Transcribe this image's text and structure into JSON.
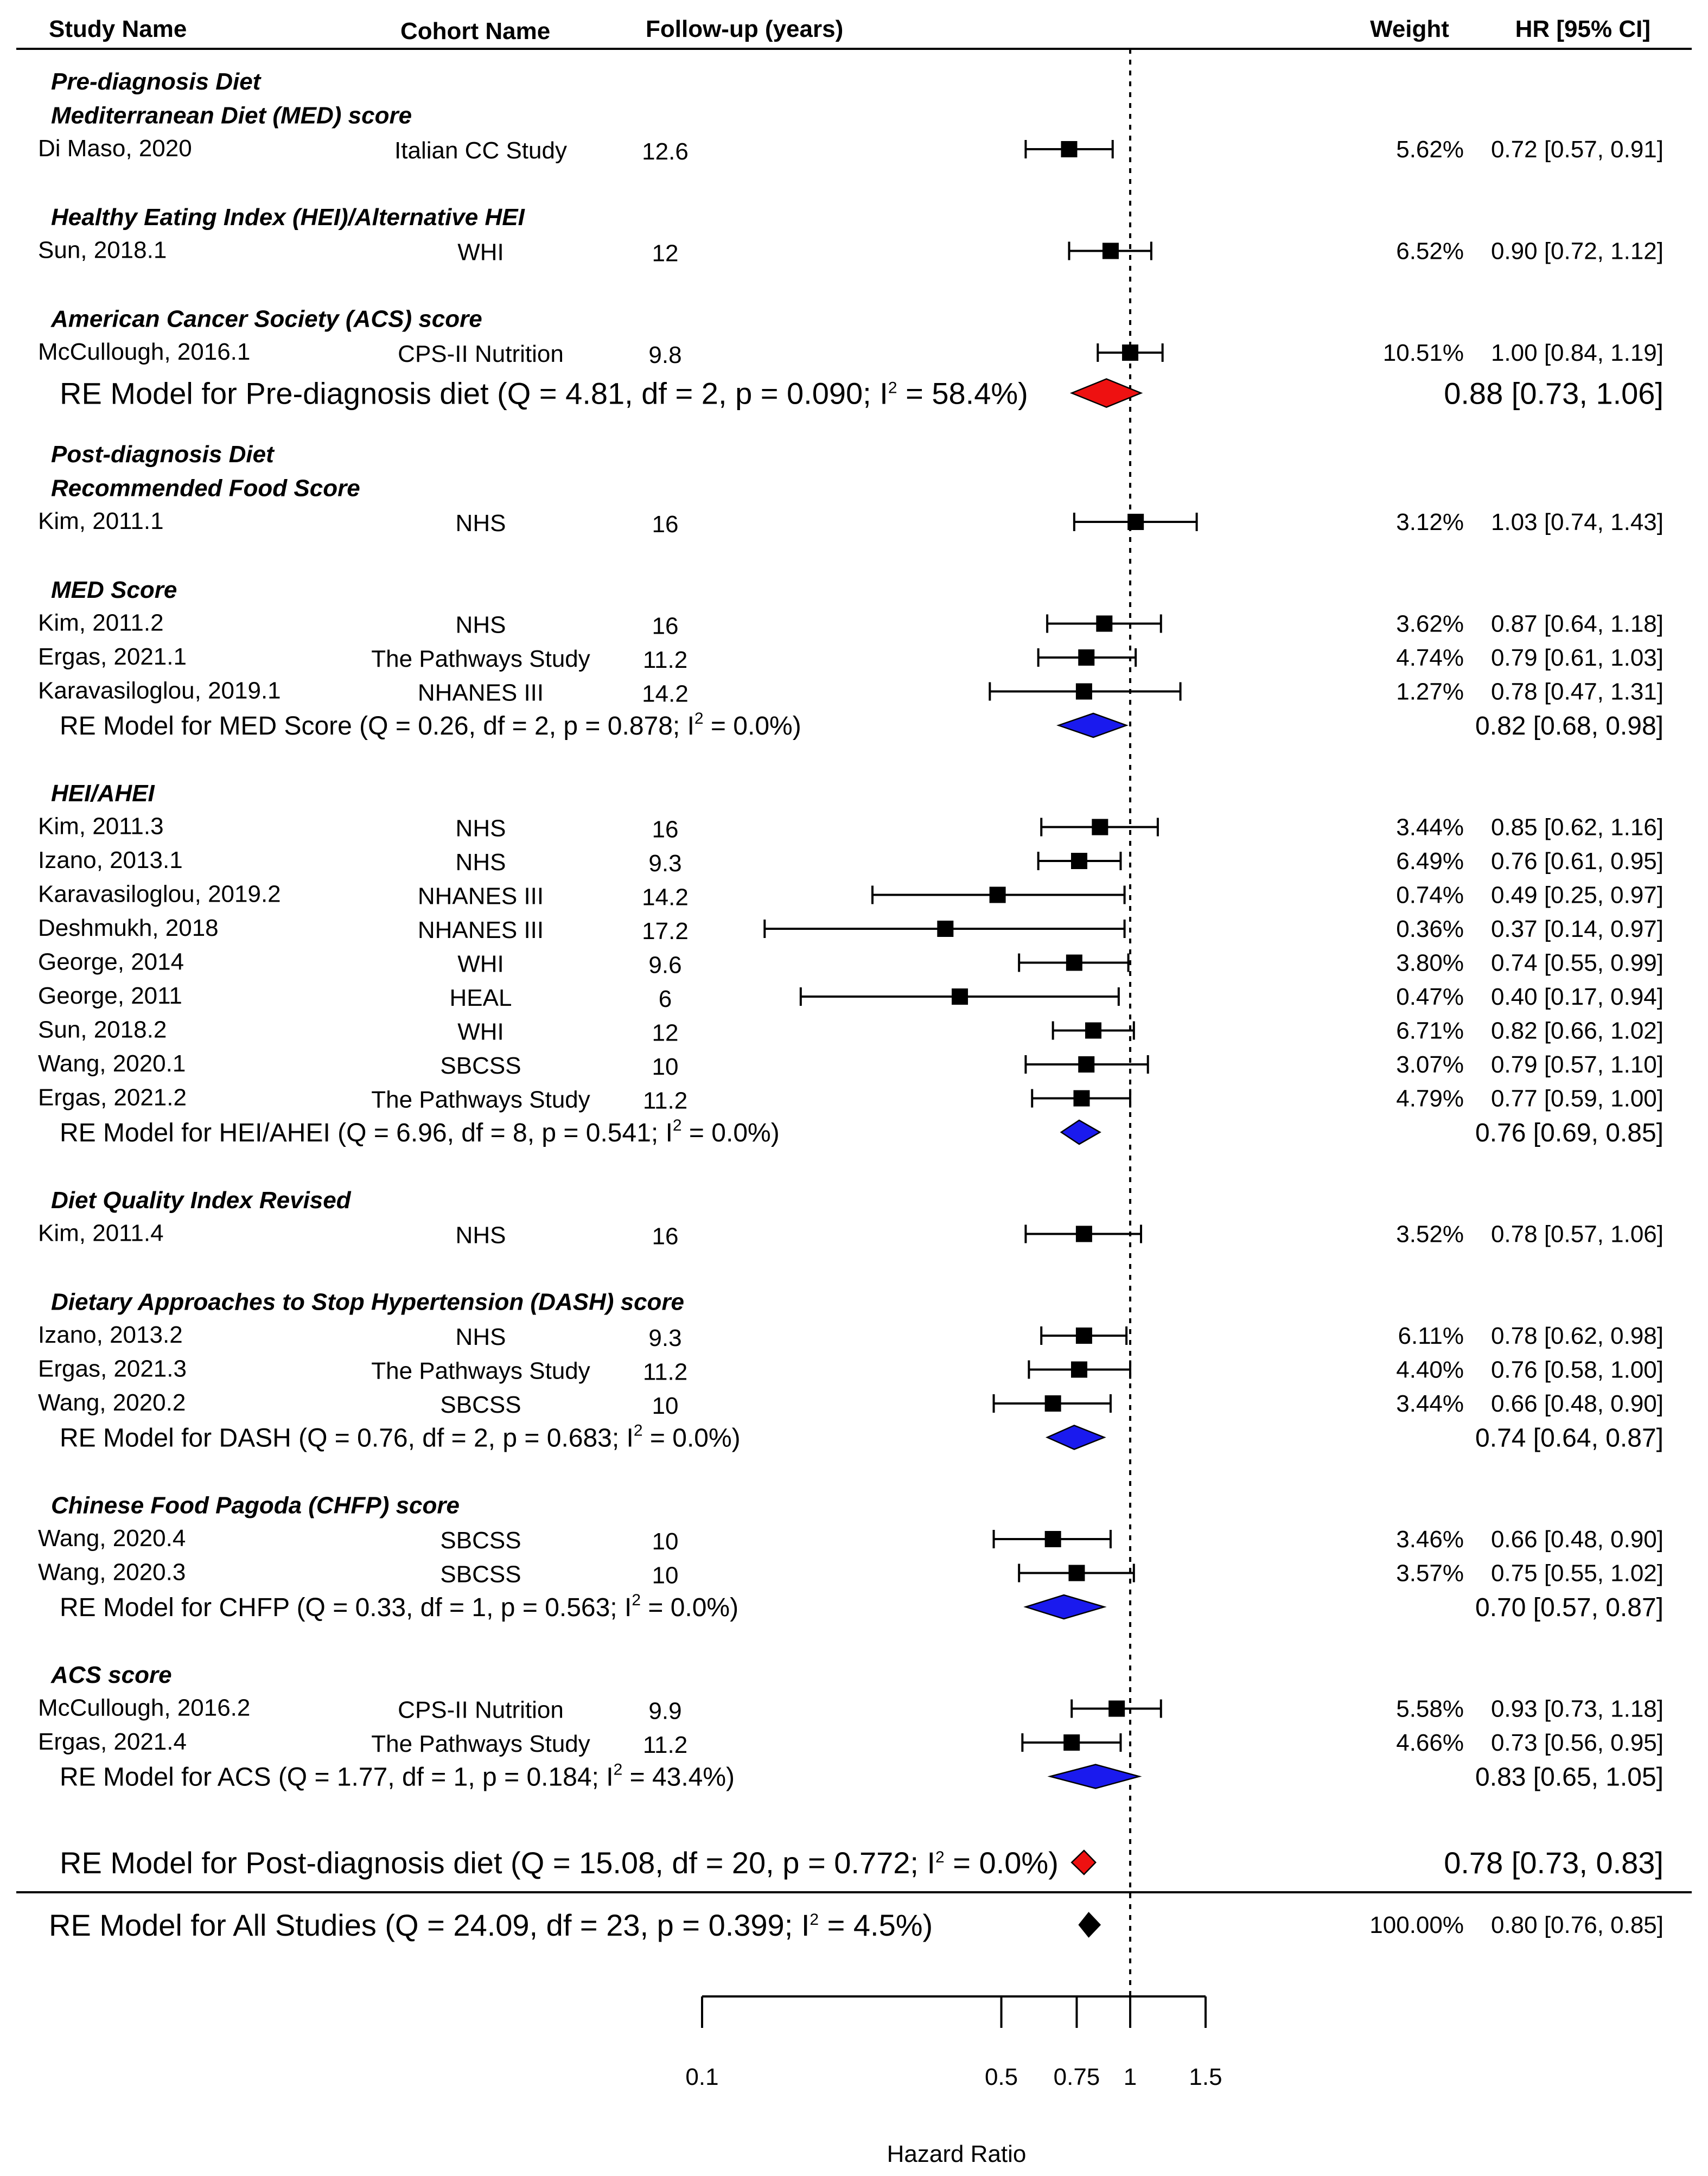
{
  "headers": {
    "study": "Study Name",
    "cohort": "Cohort Name",
    "followup": "Follow-up (years)",
    "weight": "Weight",
    "hr": "HR [95% CI]"
  },
  "colors": {
    "square": "#000000",
    "pre_pooled": "#ee1111",
    "sub_pooled": "#1a1aee",
    "overall": "#000000"
  },
  "chart_data": {
    "type": "forest",
    "xscale": "log",
    "xlim": [
      0.1,
      1.5
    ],
    "reference_line": 1,
    "xticks": [
      0.1,
      0.5,
      0.75,
      1,
      1.5
    ],
    "xtick_labels": [
      "0.1",
      "0.5",
      "0.75",
      "1",
      "1.5"
    ],
    "xlabel": "Hazard Ratio",
    "rows": [
      {
        "kind": "section",
        "text": "Pre-diagnosis Diet"
      },
      {
        "kind": "section",
        "text": "Mediterranean Diet (MED) score"
      },
      {
        "kind": "study",
        "study": "Di Maso, 2020",
        "cohort": "Italian CC Study",
        "followup": "12.6",
        "weight": "5.62%",
        "hr": 0.72,
        "lo": 0.57,
        "hi": 0.91,
        "hr_text": "0.72 [0.57, 0.91]"
      },
      {
        "kind": "gap"
      },
      {
        "kind": "section",
        "text": "Healthy Eating Index (HEI)/Alternative HEI"
      },
      {
        "kind": "study",
        "study": "Sun, 2018.1",
        "cohort": "WHI",
        "followup": "12",
        "weight": "6.52%",
        "hr": 0.9,
        "lo": 0.72,
        "hi": 1.12,
        "hr_text": "0.90 [0.72, 1.12]"
      },
      {
        "kind": "gap"
      },
      {
        "kind": "section",
        "text": "American Cancer Society (ACS) score"
      },
      {
        "kind": "study",
        "study": "McCullough, 2016.1",
        "cohort": "CPS-II Nutrition",
        "followup": "9.8",
        "weight": "10.51%",
        "hr": 1.0,
        "lo": 0.84,
        "hi": 1.19,
        "hr_text": "1.00 [0.84, 1.19]"
      },
      {
        "kind": "pooled",
        "style": "pre",
        "label": "RE Model for Pre-diagnosis diet (Q = 4.81, df = 2, p = 0.090; I",
        "sup": "2",
        "label_end": " = 58.4%)",
        "hr": 0.88,
        "lo": 0.73,
        "hi": 1.06,
        "hr_text": "0.88 [0.73, 1.06]"
      },
      {
        "kind": "section",
        "text": "Post-diagnosis Diet"
      },
      {
        "kind": "section",
        "text": "Recommended Food Score"
      },
      {
        "kind": "study",
        "study": "Kim, 2011.1",
        "cohort": "NHS",
        "followup": "16",
        "weight": "3.12%",
        "hr": 1.03,
        "lo": 0.74,
        "hi": 1.43,
        "hr_text": "1.03 [0.74, 1.43]"
      },
      {
        "kind": "gap"
      },
      {
        "kind": "section",
        "text": "MED Score"
      },
      {
        "kind": "study",
        "study": "Kim, 2011.2",
        "cohort": "NHS",
        "followup": "16",
        "weight": "3.62%",
        "hr": 0.87,
        "lo": 0.64,
        "hi": 1.18,
        "hr_text": "0.87 [0.64, 1.18]"
      },
      {
        "kind": "study",
        "study": "Ergas, 2021.1",
        "cohort": "The Pathways Study",
        "followup": "11.2",
        "weight": "4.74%",
        "hr": 0.79,
        "lo": 0.61,
        "hi": 1.03,
        "hr_text": "0.79 [0.61, 1.03]"
      },
      {
        "kind": "study",
        "study": "Karavasiloglou, 2019.1",
        "cohort": "NHANES III",
        "followup": "14.2",
        "weight": "1.27%",
        "hr": 0.78,
        "lo": 0.47,
        "hi": 1.31,
        "hr_text": "0.78 [0.47, 1.31]"
      },
      {
        "kind": "pooled",
        "style": "sub",
        "label": "RE Model for MED Score (Q = 0.26, df = 2, p = 0.878; I",
        "sup": "2",
        "label_end": " = 0.0%)",
        "hr": 0.82,
        "lo": 0.68,
        "hi": 0.98,
        "hr_text": "0.82 [0.68, 0.98]"
      },
      {
        "kind": "gap"
      },
      {
        "kind": "section",
        "text": "HEI/AHEI"
      },
      {
        "kind": "study",
        "study": "Kim, 2011.3",
        "cohort": "NHS",
        "followup": "16",
        "weight": "3.44%",
        "hr": 0.85,
        "lo": 0.62,
        "hi": 1.16,
        "hr_text": "0.85 [0.62, 1.16]"
      },
      {
        "kind": "study",
        "study": "Izano, 2013.1",
        "cohort": "NHS",
        "followup": "9.3",
        "weight": "6.49%",
        "hr": 0.76,
        "lo": 0.61,
        "hi": 0.95,
        "hr_text": "0.76 [0.61, 0.95]"
      },
      {
        "kind": "study",
        "study": "Karavasiloglou, 2019.2",
        "cohort": "NHANES III",
        "followup": "14.2",
        "weight": "0.74%",
        "hr": 0.49,
        "lo": 0.25,
        "hi": 0.97,
        "hr_text": "0.49 [0.25, 0.97]"
      },
      {
        "kind": "study",
        "study": "Deshmukh, 2018",
        "cohort": "NHANES III",
        "followup": "17.2",
        "weight": "0.36%",
        "hr": 0.37,
        "lo": 0.14,
        "hi": 0.97,
        "hr_text": "0.37 [0.14, 0.97]"
      },
      {
        "kind": "study",
        "study": "George, 2014",
        "cohort": "WHI",
        "followup": "9.6",
        "weight": "3.80%",
        "hr": 0.74,
        "lo": 0.55,
        "hi": 0.99,
        "hr_text": "0.74 [0.55, 0.99]"
      },
      {
        "kind": "study",
        "study": "George, 2011",
        "cohort": "HEAL",
        "followup": "6",
        "weight": "0.47%",
        "hr": 0.4,
        "lo": 0.17,
        "hi": 0.94,
        "hr_text": "0.40 [0.17, 0.94]"
      },
      {
        "kind": "study",
        "study": "Sun, 2018.2",
        "cohort": "WHI",
        "followup": "12",
        "weight": "6.71%",
        "hr": 0.82,
        "lo": 0.66,
        "hi": 1.02,
        "hr_text": "0.82 [0.66, 1.02]"
      },
      {
        "kind": "study",
        "study": "Wang, 2020.1",
        "cohort": "SBCSS",
        "followup": "10",
        "weight": "3.07%",
        "hr": 0.79,
        "lo": 0.57,
        "hi": 1.1,
        "hr_text": "0.79 [0.57, 1.10]"
      },
      {
        "kind": "study",
        "study": "Ergas, 2021.2",
        "cohort": "The Pathways Study",
        "followup": "11.2",
        "weight": "4.79%",
        "hr": 0.77,
        "lo": 0.59,
        "hi": 1.0,
        "hr_text": "0.77 [0.59, 1.00]"
      },
      {
        "kind": "pooled",
        "style": "sub",
        "label": "RE Model for HEI/AHEI (Q = 6.96, df = 8, p = 0.541; I",
        "sup": "2",
        "label_end": " = 0.0%)",
        "hr": 0.76,
        "lo": 0.69,
        "hi": 0.85,
        "hr_text": "0.76 [0.69, 0.85]"
      },
      {
        "kind": "gap"
      },
      {
        "kind": "section",
        "text": "Diet Quality Index Revised"
      },
      {
        "kind": "study",
        "study": "Kim, 2011.4",
        "cohort": "NHS",
        "followup": "16",
        "weight": "3.52%",
        "hr": 0.78,
        "lo": 0.57,
        "hi": 1.06,
        "hr_text": "0.78 [0.57, 1.06]"
      },
      {
        "kind": "gap"
      },
      {
        "kind": "section",
        "text": "Dietary Approaches to Stop Hypertension (DASH) score"
      },
      {
        "kind": "study",
        "study": "Izano, 2013.2",
        "cohort": "NHS",
        "followup": "9.3",
        "weight": "6.11%",
        "hr": 0.78,
        "lo": 0.62,
        "hi": 0.98,
        "hr_text": "0.78 [0.62, 0.98]"
      },
      {
        "kind": "study",
        "study": "Ergas, 2021.3",
        "cohort": "The Pathways Study",
        "followup": "11.2",
        "weight": "4.40%",
        "hr": 0.76,
        "lo": 0.58,
        "hi": 1.0,
        "hr_text": "0.76 [0.58, 1.00]"
      },
      {
        "kind": "study",
        "study": "Wang, 2020.2",
        "cohort": "SBCSS",
        "followup": "10",
        "weight": "3.44%",
        "hr": 0.66,
        "lo": 0.48,
        "hi": 0.9,
        "hr_text": "0.66 [0.48, 0.90]"
      },
      {
        "kind": "pooled",
        "style": "sub",
        "label": "RE Model for DASH (Q = 0.76, df = 2, p = 0.683; I",
        "sup": "2",
        "label_end": " = 0.0%)",
        "hr": 0.74,
        "lo": 0.64,
        "hi": 0.87,
        "hr_text": "0.74 [0.64, 0.87]"
      },
      {
        "kind": "gap"
      },
      {
        "kind": "section",
        "text": "Chinese Food Pagoda (CHFP) score"
      },
      {
        "kind": "study",
        "study": "Wang, 2020.4",
        "cohort": "SBCSS",
        "followup": "10",
        "weight": "3.46%",
        "hr": 0.66,
        "lo": 0.48,
        "hi": 0.9,
        "hr_text": "0.66 [0.48, 0.90]"
      },
      {
        "kind": "study",
        "study": "Wang, 2020.3",
        "cohort": "SBCSS",
        "followup": "10",
        "weight": "3.57%",
        "hr": 0.75,
        "lo": 0.55,
        "hi": 1.02,
        "hr_text": "0.75 [0.55, 1.02]"
      },
      {
        "kind": "pooled",
        "style": "sub",
        "label": "RE Model for CHFP (Q = 0.33, df = 1, p = 0.563; I",
        "sup": "2",
        "label_end": " = 0.0%)",
        "hr": 0.7,
        "lo": 0.57,
        "hi": 0.87,
        "hr_text": "0.70 [0.57, 0.87]"
      },
      {
        "kind": "gap"
      },
      {
        "kind": "section",
        "text": "ACS score"
      },
      {
        "kind": "study",
        "study": "McCullough, 2016.2",
        "cohort": "CPS-II Nutrition",
        "followup": "9.9",
        "weight": "5.58%",
        "hr": 0.93,
        "lo": 0.73,
        "hi": 1.18,
        "hr_text": "0.93 [0.73, 1.18]"
      },
      {
        "kind": "study",
        "study": "Ergas, 2021.4",
        "cohort": "The Pathways Study",
        "followup": "11.2",
        "weight": "4.66%",
        "hr": 0.73,
        "lo": 0.56,
        "hi": 0.95,
        "hr_text": "0.73 [0.56, 0.95]"
      },
      {
        "kind": "pooled",
        "style": "sub",
        "label": "RE Model for ACS (Q = 1.77, df = 1, p = 0.184; I",
        "sup": "2",
        "label_end": " = 43.4%)",
        "hr": 0.83,
        "lo": 0.65,
        "hi": 1.05,
        "hr_text": "0.83 [0.65, 1.05]"
      },
      {
        "kind": "gap"
      },
      {
        "kind": "pooled",
        "style": "post",
        "label": "RE Model for Post-diagnosis diet (Q = 15.08, df = 20, p = 0.772; I",
        "sup": "2",
        "label_end": " = 0.0%)",
        "hr": 0.78,
        "lo": 0.73,
        "hi": 0.83,
        "hr_text": "0.78 [0.73, 0.83]"
      },
      {
        "kind": "pooled",
        "style": "overall",
        "label": "RE Model for All Studies (Q = 24.09, df = 23, p = 0.399; I",
        "sup": "2",
        "label_end": " = 4.5%)",
        "weight": "100.00%",
        "hr": 0.8,
        "lo": 0.76,
        "hi": 0.85,
        "hr_text": "0.80 [0.76, 0.85]"
      }
    ]
  }
}
